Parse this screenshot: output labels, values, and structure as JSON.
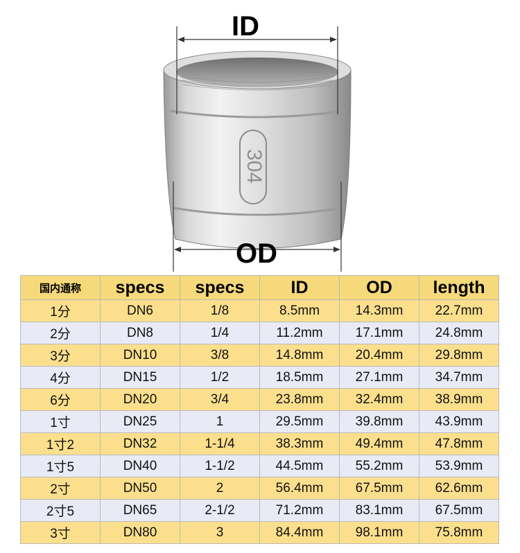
{
  "figure": {
    "id_label": "ID",
    "od_label": "OD",
    "stamp": "304",
    "colors": {
      "metal_light": "#ececec",
      "metal_mid": "#c4c4c4",
      "metal_dark": "#8e8e8e"
    }
  },
  "table": {
    "headers": [
      "国内通称",
      "specs",
      "specs",
      "ID",
      "OD",
      "length"
    ],
    "rows": [
      [
        "1分",
        "DN6",
        "1/8",
        "8.5mm",
        "14.3mm",
        "22.7mm"
      ],
      [
        "2分",
        "DN8",
        "1/4",
        "11.2mm",
        "17.1mm",
        "24.8mm"
      ],
      [
        "3分",
        "DN10",
        "3/8",
        "14.8mm",
        "20.4mm",
        "29.8mm"
      ],
      [
        "4分",
        "DN15",
        "1/2",
        "18.5mm",
        "27.1mm",
        "34.7mm"
      ],
      [
        "6分",
        "DN20",
        "3/4",
        "23.8mm",
        "32.4mm",
        "38.9mm"
      ],
      [
        "1寸",
        "DN25",
        "1",
        "29.5mm",
        "39.8mm",
        "43.9mm"
      ],
      [
        "1寸2",
        "DN32",
        "1-1/4",
        "38.3mm",
        "49.4mm",
        "47.8mm"
      ],
      [
        "1寸5",
        "DN40",
        "1-1/2",
        "44.5mm",
        "55.2mm",
        "53.9mm"
      ],
      [
        "2寸",
        "DN50",
        "2",
        "56.4mm",
        "67.5mm",
        "62.6mm"
      ],
      [
        "2寸5",
        "DN65",
        "2-1/2",
        "71.2mm",
        "83.1mm",
        "67.5mm"
      ],
      [
        "3寸",
        "DN80",
        "3",
        "84.4mm",
        "98.1mm",
        "75.8mm"
      ]
    ],
    "colors": {
      "header_bg": "#f6d97a",
      "row_gold": "#fbdf8c",
      "row_lavender": "#e8ebf5",
      "border": "#b9b9b9"
    }
  }
}
